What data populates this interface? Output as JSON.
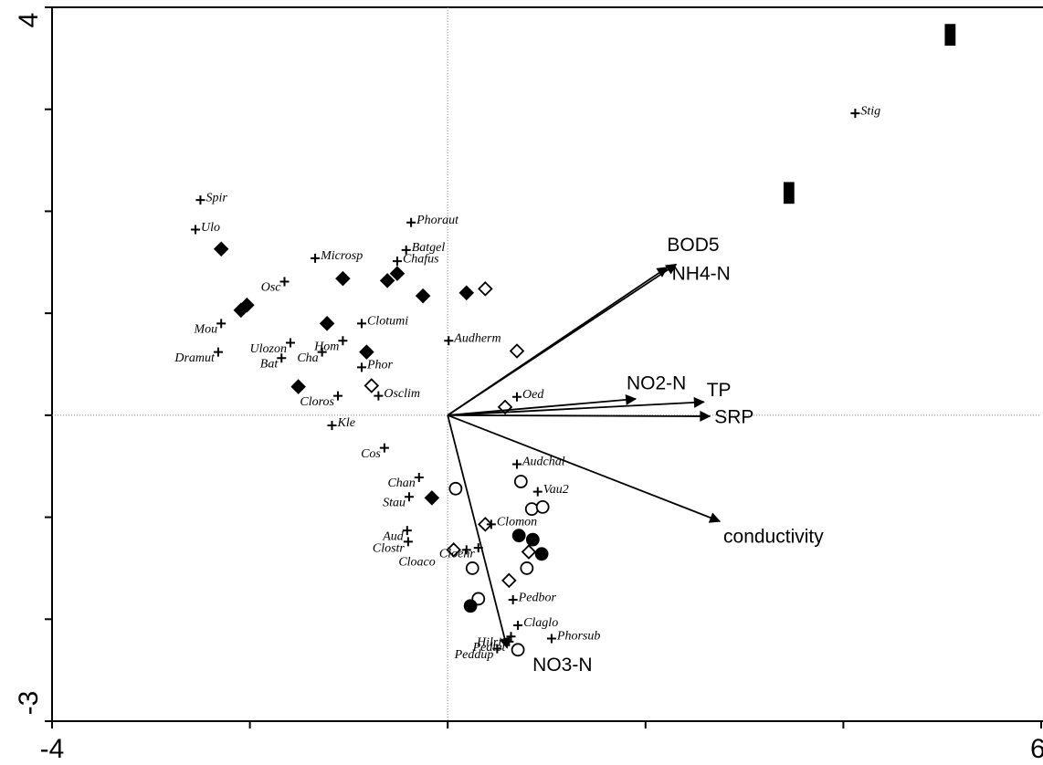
{
  "chart_data": {
    "type": "biplot",
    "xlim": [
      -4,
      6
    ],
    "ylim": [
      -3,
      4
    ],
    "xticks": [
      {
        "value": -4,
        "label": "-4"
      },
      {
        "value": -2,
        "label": null
      },
      {
        "value": 0,
        "label": null
      },
      {
        "value": 2,
        "label": null
      },
      {
        "value": 4,
        "label": null
      },
      {
        "value": 6,
        "label": "6"
      }
    ],
    "yticks": [
      {
        "value": -3,
        "label": "-3"
      },
      {
        "value": -2,
        "label": null
      },
      {
        "value": -1,
        "label": null
      },
      {
        "value": 0,
        "label": null
      },
      {
        "value": 1,
        "label": null
      },
      {
        "value": 2,
        "label": null
      },
      {
        "value": 3,
        "label": null
      },
      {
        "value": 4,
        "label": "4"
      }
    ],
    "color": "#000000",
    "vectors": {
      "labels": [
        "BOD5",
        "NH4-N",
        "NO2-N",
        "TP",
        "SRP",
        "conductivity",
        "NO3-N"
      ],
      "x": [
        2.31,
        2.22,
        1.9,
        2.59,
        2.65,
        2.75,
        0.6
      ],
      "y": [
        1.48,
        1.45,
        0.16,
        0.13,
        -0.01,
        -1.04,
        -2.28
      ]
    },
    "species": {
      "labels": [
        "Spir",
        "Ulo",
        "Phoraut",
        "Batgel",
        "Chafus",
        "Microsp",
        "Osc",
        "Mou",
        "Clotumi",
        "Audherm",
        "Ulozon",
        "Hom",
        "Cha",
        "Dramut",
        "Bat",
        "Phor",
        "Cloros",
        "Osclim",
        "Oed",
        "Kle",
        "Cos",
        "Audchal",
        "Chan",
        "Vau2",
        "Stau",
        "Clomon",
        "Aud",
        "Cloehr",
        "Clostr",
        "Cloaco",
        "Pedbor",
        "Claglo",
        "Hilriv",
        "Phorsub",
        "Pedtet",
        "Peddup",
        "Stig"
      ],
      "x": [
        -2.5,
        -2.55,
        -0.37,
        -0.42,
        -0.51,
        -1.34,
        -1.65,
        -2.29,
        -0.87,
        0.01,
        -1.59,
        -1.06,
        -1.27,
        -2.32,
        -1.68,
        -0.87,
        -1.11,
        -0.7,
        0.7,
        -1.17,
        -0.64,
        0.7,
        -0.29,
        0.91,
        -0.39,
        0.44,
        -0.41,
        0.31,
        -0.4,
        0.19,
        0.66,
        0.71,
        0.64,
        1.05,
        0.62,
        0.5,
        4.12
      ],
      "y": [
        2.11,
        1.82,
        1.89,
        1.62,
        1.51,
        1.54,
        1.31,
        0.9,
        0.9,
        0.73,
        0.71,
        0.73,
        0.62,
        0.62,
        0.56,
        0.47,
        0.19,
        0.19,
        0.18,
        -0.1,
        -0.32,
        -0.48,
        -0.61,
        -0.75,
        -0.8,
        -1.07,
        -1.13,
        -1.3,
        -1.24,
        -1.32,
        -1.81,
        -2.06,
        -2.17,
        -2.19,
        -2.22,
        -2.29,
        2.96
      ]
    },
    "site_series": [
      {
        "marker": "diamond",
        "filled": true,
        "x": [
          -2.29,
          -2.03,
          -2.09,
          -1.06,
          -0.61,
          -0.51,
          -0.25,
          0.19,
          -1.22,
          -0.82,
          -1.51,
          -0.16
        ],
        "y": [
          1.63,
          1.08,
          1.03,
          1.34,
          1.32,
          1.39,
          1.17,
          1.2,
          0.9,
          0.62,
          0.28,
          -0.81
        ]
      },
      {
        "marker": "diamond",
        "filled": false,
        "x": [
          0.38,
          0.7,
          -0.77,
          0.58,
          0.38,
          0.06,
          0.82,
          0.62
        ],
        "y": [
          1.24,
          0.63,
          0.29,
          0.08,
          -1.07,
          -1.32,
          -1.34,
          -1.62
        ]
      },
      {
        "marker": "circle",
        "filled": false,
        "x": [
          0.08,
          0.74,
          0.85,
          0.96,
          0.25,
          0.8,
          0.31,
          0.71
        ],
        "y": [
          -0.72,
          -0.65,
          -0.92,
          -0.9,
          -1.5,
          -1.5,
          -1.8,
          -2.3
        ]
      },
      {
        "marker": "circle",
        "filled": true,
        "x": [
          0.72,
          0.86,
          0.95,
          0.23
        ],
        "y": [
          -1.18,
          -1.22,
          -1.36,
          -1.87
        ]
      },
      {
        "marker": "rect",
        "filled": true,
        "x": [
          5.08,
          3.45
        ],
        "y": [
          3.73,
          2.18
        ]
      }
    ]
  }
}
